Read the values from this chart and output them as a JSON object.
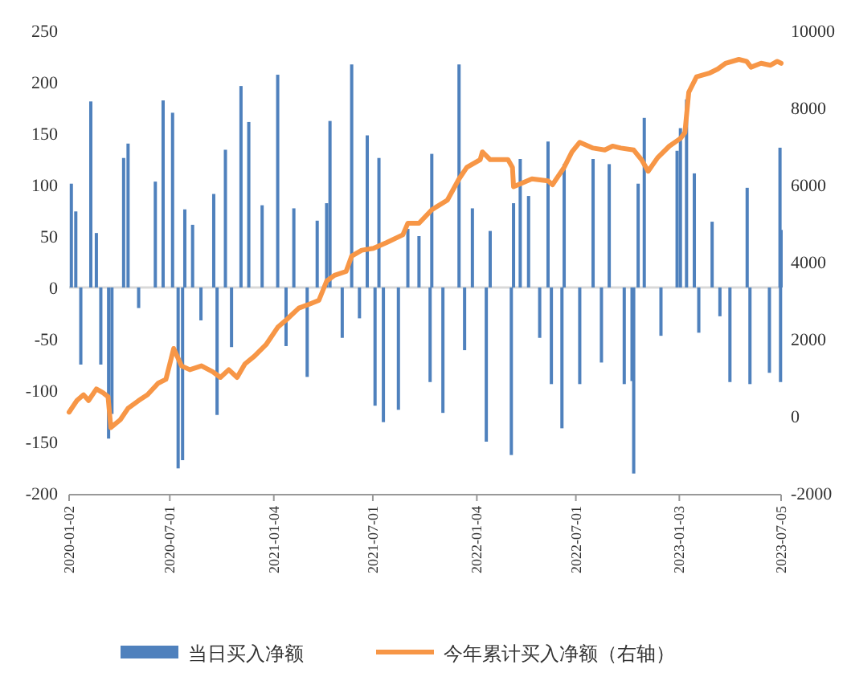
{
  "chart_data": {
    "type": "bar",
    "legend": "bottom",
    "xlim": [
      "2020-01-02",
      "2023-07-05"
    ],
    "xticks": [
      "2020-01-02",
      "2020-07-01",
      "2021-01-04",
      "2021-07-01",
      "2022-01-04",
      "2022-07-01",
      "2023-01-03",
      "2023-07-05"
    ],
    "ylim": [
      -200,
      250
    ],
    "yticks": [
      -200,
      -150,
      -100,
      -50,
      0,
      50,
      100,
      150,
      200,
      250
    ],
    "y2lim": [
      -2000,
      10000
    ],
    "y2ticks": [
      -2000,
      0,
      2000,
      4000,
      6000,
      8000,
      10000
    ],
    "series": [
      {
        "name": "当日买入净额",
        "type": "bar",
        "color": "#4f81bd",
        "x": [
          "2020-01-06",
          "2020-01-14",
          "2020-01-23",
          "2020-02-10",
          "2020-02-20",
          "2020-02-28",
          "2020-03-13",
          "2020-03-19",
          "2020-04-09",
          "2020-04-17",
          "2020-05-06",
          "2020-06-05",
          "2020-06-19",
          "2020-07-06",
          "2020-07-16",
          "2020-07-24",
          "2020-07-28",
          "2020-08-11",
          "2020-08-26",
          "2020-09-18",
          "2020-09-24",
          "2020-10-09",
          "2020-10-20",
          "2020-11-06",
          "2020-11-20",
          "2020-12-14",
          "2021-01-11",
          "2021-01-26",
          "2021-02-09",
          "2021-03-05",
          "2021-03-23",
          "2021-04-09",
          "2021-04-15",
          "2021-05-07",
          "2021-05-24",
          "2021-06-07",
          "2021-06-21",
          "2021-07-05",
          "2021-07-12",
          "2021-07-20",
          "2021-08-16",
          "2021-09-02",
          "2021-09-22",
          "2021-10-12",
          "2021-10-15",
          "2021-11-04",
          "2021-12-03",
          "2021-12-13",
          "2021-12-27",
          "2022-01-21",
          "2022-01-28",
          "2022-03-07",
          "2022-03-11",
          "2022-03-23",
          "2022-04-07",
          "2022-04-27",
          "2022-05-12",
          "2022-05-18",
          "2022-06-06",
          "2022-06-10",
          "2022-07-08",
          "2022-08-01",
          "2022-08-16",
          "2022-08-30",
          "2022-09-26",
          "2022-10-10",
          "2022-10-13",
          "2022-10-21",
          "2022-11-01",
          "2022-12-01",
          "2022-12-30",
          "2023-01-05",
          "2023-01-16",
          "2023-01-30",
          "2023-02-07",
          "2023-03-03",
          "2023-03-17",
          "2023-04-04",
          "2023-05-05",
          "2023-05-10",
          "2023-06-14",
          "2023-07-03",
          "2023-07-04",
          "2023-07-05"
        ],
        "values": [
          101,
          74,
          -75,
          181,
          53,
          -75,
          -147,
          -123,
          126,
          140,
          -20,
          103,
          182,
          170,
          -176,
          -168,
          76,
          61,
          -32,
          91,
          -124,
          134,
          -58,
          196,
          161,
          80,
          207,
          -57,
          77,
          -87,
          65,
          82,
          162,
          -49,
          217,
          -30,
          148,
          -115,
          126,
          -131,
          -119,
          57,
          50,
          -92,
          130,
          -122,
          217,
          -61,
          77,
          -150,
          55,
          -163,
          82,
          125,
          89,
          -49,
          142,
          -94,
          -137,
          120,
          -94,
          125,
          -73,
          120,
          -94,
          -91,
          -181,
          101,
          165,
          -47,
          133,
          155,
          183,
          111,
          -44,
          64,
          -28,
          -92,
          97,
          -94,
          -83,
          136,
          -92,
          56
        ]
      },
      {
        "name": "今年累计买入净额（右轴）",
        "type": "line",
        "axis": "y2",
        "color": "#f79646",
        "x": [
          "2020-01-02",
          "2020-01-16",
          "2020-01-28",
          "2020-02-06",
          "2020-02-20",
          "2020-03-03",
          "2020-03-12",
          "2020-03-17",
          "2020-04-03",
          "2020-04-17",
          "2020-05-06",
          "2020-05-22",
          "2020-06-10",
          "2020-06-24",
          "2020-07-08",
          "2020-07-22",
          "2020-08-06",
          "2020-08-27",
          "2020-09-16",
          "2020-09-30",
          "2020-10-15",
          "2020-10-30",
          "2020-11-13",
          "2020-11-30",
          "2020-12-21",
          "2021-01-11",
          "2021-01-27",
          "2021-02-18",
          "2021-03-09",
          "2021-03-26",
          "2021-04-09",
          "2021-04-23",
          "2021-05-14",
          "2021-05-24",
          "2021-06-11",
          "2021-07-02",
          "2021-07-26",
          "2021-08-24",
          "2021-09-02",
          "2021-09-22",
          "2021-10-15",
          "2021-11-12",
          "2021-12-03",
          "2021-12-17",
          "2022-01-10",
          "2022-01-14",
          "2022-01-28",
          "2022-03-01",
          "2022-03-09",
          "2022-03-11",
          "2022-04-13",
          "2022-05-12",
          "2022-05-20",
          "2022-06-10",
          "2022-06-24",
          "2022-07-08",
          "2022-08-01",
          "2022-08-22",
          "2022-09-05",
          "2022-09-20",
          "2022-10-13",
          "2022-10-27",
          "2022-11-08",
          "2022-11-25",
          "2022-12-16",
          "2023-01-05",
          "2023-01-13",
          "2023-01-20",
          "2023-02-03",
          "2023-02-27",
          "2023-03-13",
          "2023-03-27",
          "2023-04-20",
          "2023-05-04",
          "2023-05-12",
          "2023-05-30",
          "2023-06-16",
          "2023-06-28",
          "2023-07-05"
        ],
        "values": [
          100,
          400,
          550,
          400,
          700,
          600,
          500,
          -300,
          -100,
          200,
          400,
          550,
          850,
          950,
          1750,
          1300,
          1200,
          1300,
          1150,
          1000,
          1200,
          1000,
          1350,
          1550,
          1850,
          2300,
          2500,
          2800,
          2900,
          3000,
          3500,
          3650,
          3750,
          4150,
          4300,
          4350,
          4500,
          4700,
          5000,
          5000,
          5350,
          5600,
          6150,
          6450,
          6650,
          6850,
          6650,
          6650,
          6450,
          5950,
          6150,
          6100,
          6000,
          6450,
          6850,
          7100,
          6950,
          6900,
          7000,
          6950,
          6900,
          6650,
          6350,
          6700,
          7000,
          7200,
          7350,
          8400,
          8800,
          8900,
          9000,
          9150,
          9250,
          9200,
          9050,
          9150,
          9100,
          9200,
          9150
        ]
      }
    ]
  }
}
